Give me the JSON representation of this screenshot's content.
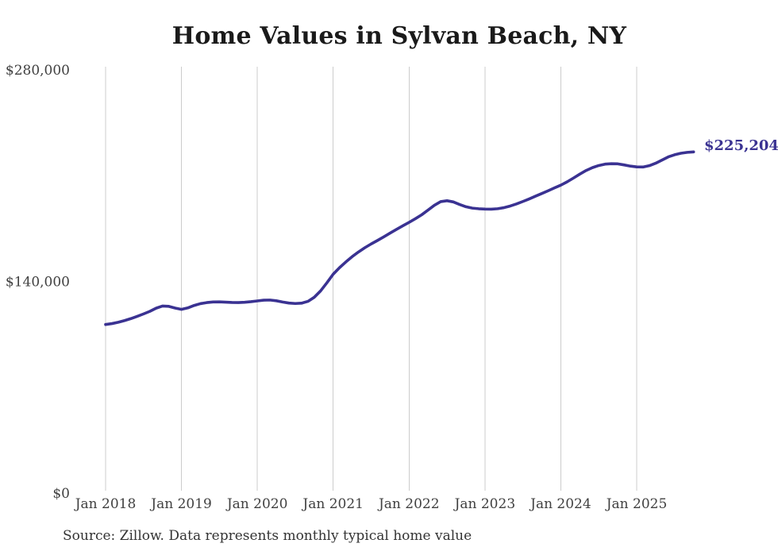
{
  "page": {
    "title": "Home Values in Sylvan Beach, NY",
    "source_note": "Source: Zillow. Data represents monthly typical home value"
  },
  "colors": {
    "line": "#3a3292",
    "grid": "#cccccc",
    "axis_text": "#404040",
    "title_text": "#1a1a1a",
    "source_text": "#333333",
    "background": "#ffffff"
  },
  "chart_data": {
    "type": "line",
    "title": "Home Values in Sylvan Beach, NY",
    "xlabel": "",
    "ylabel": "",
    "ylim": [
      0,
      280000
    ],
    "grid": "vertical-only",
    "legend": "none",
    "x_tick_labels": [
      "Jan 2018",
      "Jan 2019",
      "Jan 2020",
      "Jan 2021",
      "Jan 2022",
      "Jan 2023",
      "Jan 2024",
      "Jan 2025"
    ],
    "y_ticks": [
      {
        "label": "$0",
        "value": 0
      },
      {
        "label": "$140,000",
        "value": 140000
      },
      {
        "label": "$280,000",
        "value": 280000
      }
    ],
    "frequency": "monthly",
    "x_start": "2018-01",
    "x_end": "2025-10",
    "series": [
      {
        "name": "Typical home value",
        "values": [
          111000,
          111600,
          112500,
          113600,
          114900,
          116400,
          118000,
          119700,
          121800,
          123200,
          123000,
          121900,
          121000,
          122000,
          123600,
          124800,
          125500,
          125900,
          126000,
          125800,
          125600,
          125500,
          125700,
          126100,
          126600,
          127100,
          127200,
          126700,
          125900,
          125200,
          124900,
          125100,
          126300,
          129000,
          133200,
          138600,
          144300,
          148600,
          152400,
          155900,
          159000,
          161800,
          164300,
          166600,
          169000,
          171500,
          173900,
          176300,
          178600,
          181000,
          183600,
          186700,
          189900,
          192300,
          192900,
          192100,
          190400,
          188900,
          188000,
          187600,
          187400,
          187300,
          187600,
          188300,
          189400,
          190800,
          192400,
          194100,
          195900,
          197700,
          199500,
          201400,
          203200,
          205400,
          207900,
          210500,
          212900,
          214800,
          216200,
          217100,
          217400,
          217300,
          216600,
          215800,
          215300,
          215200,
          216100,
          217700,
          219800,
          221900,
          223300,
          224300,
          224900,
          225204
        ]
      }
    ],
    "last_value": 225204,
    "last_point_label": "$225,204"
  }
}
